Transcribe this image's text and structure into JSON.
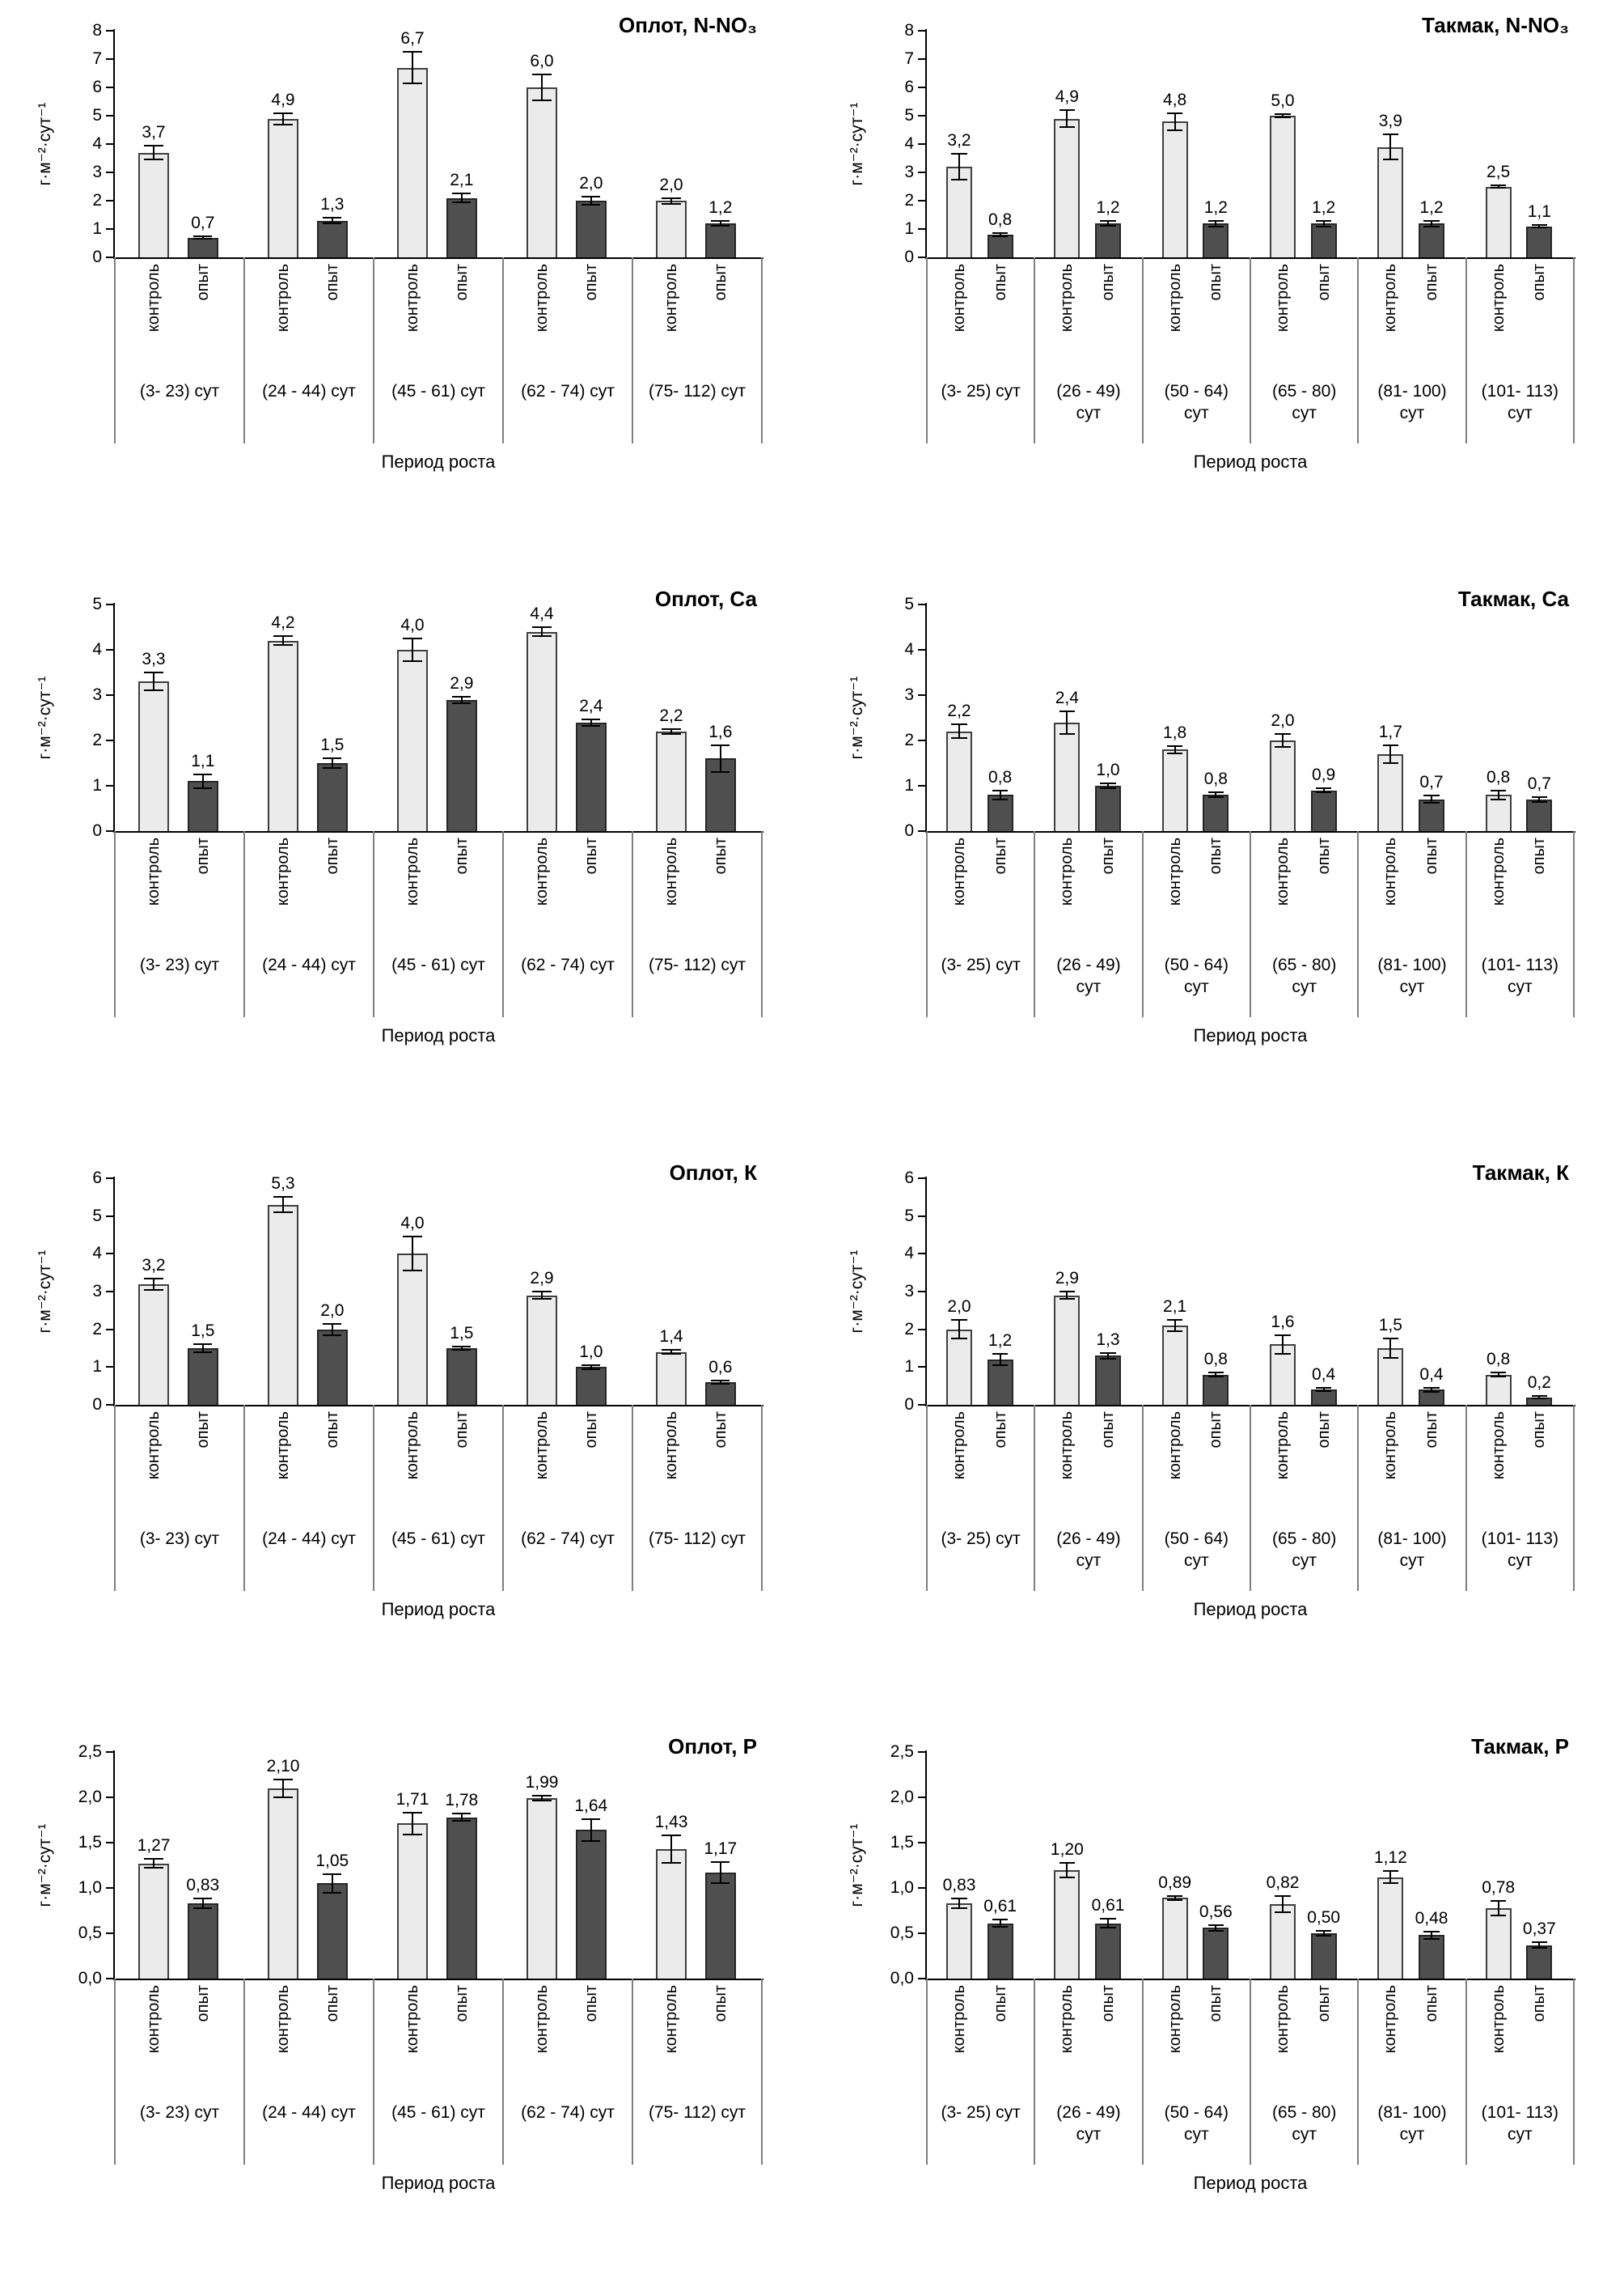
{
  "layout": {
    "xlabel": "Период роста",
    "ylabel": "г·м⁻²·сут⁻¹",
    "legend": [
      "контроль",
      "опыт"
    ],
    "colors": {
      "control_fill": "#ebebeb",
      "control_border": "#3f3f3f",
      "experiment_fill": "#4f4f4f",
      "experiment_border": "#262626",
      "axis": "#000000",
      "separator": "#7f7f7f",
      "error_bar": "#000000"
    }
  },
  "chart_data": [
    {
      "type": "bar",
      "title": "Оплот, N-NO₃",
      "ylim": [
        0,
        8
      ],
      "ystep": 1,
      "ytick_decimals": 0,
      "value_decimals": 1,
      "xlabel": "Период роста",
      "ylabel": "г·м⁻²·сут⁻¹",
      "categories": [
        "(3- 23) сут",
        "(24 - 44) сут",
        "(45 - 61) сут",
        "(62 - 74) сут",
        "(75- 112) сут"
      ],
      "series": [
        {
          "name": "контроль",
          "values": [
            3.7,
            4.9,
            6.7,
            6.0,
            2.0
          ],
          "errors": [
            0.25,
            0.2,
            0.55,
            0.45,
            0.1
          ]
        },
        {
          "name": "опыт",
          "values": [
            0.7,
            1.3,
            2.1,
            2.0,
            1.2
          ],
          "errors": [
            0.05,
            0.1,
            0.15,
            0.15,
            0.08
          ]
        }
      ]
    },
    {
      "type": "bar",
      "title": "Такмак, N-NO₃",
      "ylim": [
        0,
        8
      ],
      "ystep": 1,
      "ytick_decimals": 0,
      "value_decimals": 1,
      "xlabel": "Период роста",
      "ylabel": "г·м⁻²·сут⁻¹",
      "categories": [
        "(3- 25) сут",
        "(26 - 49)\nсут",
        "(50 - 64)\nсут",
        "(65 - 80)\nсут",
        "(81- 100)\nсут",
        "(101- 113)\nсут"
      ],
      "series": [
        {
          "name": "контроль",
          "values": [
            3.2,
            4.9,
            4.8,
            5.0,
            3.9,
            2.5
          ],
          "errors": [
            0.45,
            0.3,
            0.3,
            0.05,
            0.45,
            0.05
          ]
        },
        {
          "name": "опыт",
          "values": [
            0.8,
            1.2,
            1.2,
            1.2,
            1.2,
            1.1
          ],
          "errors": [
            0.05,
            0.08,
            0.1,
            0.1,
            0.1,
            0.05
          ]
        }
      ]
    },
    {
      "type": "bar",
      "title": "Оплот, Са",
      "ylim": [
        0,
        5
      ],
      "ystep": 1,
      "ytick_decimals": 0,
      "value_decimals": 1,
      "xlabel": "Период роста",
      "ylabel": "г·м⁻²·сут⁻¹",
      "categories": [
        "(3- 23) сут",
        "(24 - 44) сут",
        "(45 - 61) сут",
        "(62 - 74) сут",
        "(75- 112) сут"
      ],
      "series": [
        {
          "name": "контроль",
          "values": [
            3.3,
            4.2,
            4.0,
            4.4,
            2.2
          ],
          "errors": [
            0.2,
            0.1,
            0.25,
            0.1,
            0.05
          ]
        },
        {
          "name": "опыт",
          "values": [
            1.1,
            1.5,
            2.9,
            2.4,
            1.6
          ],
          "errors": [
            0.15,
            0.1,
            0.07,
            0.07,
            0.3
          ]
        }
      ]
    },
    {
      "type": "bar",
      "title": "Такмак, Са",
      "ylim": [
        0,
        5
      ],
      "ystep": 1,
      "ytick_decimals": 0,
      "value_decimals": 1,
      "xlabel": "Период роста",
      "ylabel": "г·м⁻²·сут⁻¹",
      "categories": [
        "(3- 25) сут",
        "(26 - 49)\nсут",
        "(50 - 64)\nсут",
        "(65 - 80)\nсут",
        "(81- 100)\nсут",
        "(101- 113)\nсут"
      ],
      "series": [
        {
          "name": "контроль",
          "values": [
            2.2,
            2.4,
            1.8,
            2.0,
            1.7,
            0.8
          ],
          "errors": [
            0.15,
            0.25,
            0.08,
            0.15,
            0.2,
            0.1
          ]
        },
        {
          "name": "опыт",
          "values": [
            0.8,
            1.0,
            0.8,
            0.9,
            0.7,
            0.7
          ],
          "errors": [
            0.1,
            0.05,
            0.05,
            0.05,
            0.08,
            0.05
          ]
        }
      ]
    },
    {
      "type": "bar",
      "title": "Оплот, К",
      "ylim": [
        0,
        6
      ],
      "ystep": 1,
      "ytick_decimals": 0,
      "value_decimals": 1,
      "xlabel": "Период роста",
      "ylabel": "г·м⁻²·сут⁻¹",
      "categories": [
        "(3- 23) сут",
        "(24 - 44) сут",
        "(45 - 61) сут",
        "(62 - 74) сут",
        "(75- 112) сут"
      ],
      "series": [
        {
          "name": "контроль",
          "values": [
            3.2,
            5.3,
            4.0,
            2.9,
            1.4
          ],
          "errors": [
            0.15,
            0.2,
            0.45,
            0.1,
            0.05
          ]
        },
        {
          "name": "опыт",
          "values": [
            1.5,
            2.0,
            1.5,
            1.0,
            0.6
          ],
          "errors": [
            0.1,
            0.15,
            0.05,
            0.05,
            0.05
          ]
        }
      ]
    },
    {
      "type": "bar",
      "title": "Такмак, К",
      "ylim": [
        0,
        6
      ],
      "ystep": 1,
      "ytick_decimals": 0,
      "value_decimals": 1,
      "xlabel": "Период роста",
      "ylabel": "г·м⁻²·сут⁻¹",
      "categories": [
        "(3- 25) сут",
        "(26 - 49)\nсут",
        "(50 - 64)\nсут",
        "(65 - 80)\nсут",
        "(81- 100)\nсут",
        "(101- 113)\nсут"
      ],
      "series": [
        {
          "name": "контроль",
          "values": [
            2.0,
            2.9,
            2.1,
            1.6,
            1.5,
            0.8
          ],
          "errors": [
            0.25,
            0.1,
            0.15,
            0.25,
            0.25,
            0.05
          ]
        },
        {
          "name": "опыт",
          "values": [
            1.2,
            1.3,
            0.8,
            0.4,
            0.4,
            0.2
          ],
          "errors": [
            0.15,
            0.08,
            0.05,
            0.04,
            0.05,
            0.03
          ]
        }
      ]
    },
    {
      "type": "bar",
      "title": "Оплот, Р",
      "ylim": [
        0,
        2.5
      ],
      "ystep": 0.5,
      "ytick_decimals": 1,
      "value_decimals": 2,
      "xlabel": "Период роста",
      "ylabel": "г·м⁻²·сут⁻¹",
      "categories": [
        "(3- 23) сут",
        "(24 - 44) сут",
        "(45 - 61) сут",
        "(62 - 74) сут",
        "(75- 112) сут"
      ],
      "series": [
        {
          "name": "контроль",
          "values": [
            1.27,
            2.1,
            1.71,
            1.99,
            1.43
          ],
          "errors": [
            0.05,
            0.1,
            0.12,
            0.03,
            0.15
          ]
        },
        {
          "name": "опыт",
          "values": [
            0.83,
            1.05,
            1.78,
            1.64,
            1.17
          ],
          "errors": [
            0.05,
            0.1,
            0.04,
            0.12,
            0.12
          ]
        }
      ]
    },
    {
      "type": "bar",
      "title": "Такмак,  Р",
      "ylim": [
        0,
        2.5
      ],
      "ystep": 0.5,
      "ytick_decimals": 1,
      "value_decimals": 2,
      "xlabel": "Период роста",
      "ylabel": "г·м⁻²·сут⁻¹",
      "categories": [
        "(3- 25) сут",
        "(26 - 49)\nсут",
        "(50 - 64)\nсут",
        "(65 - 80)\nсут",
        "(81- 100)\nсут",
        "(101- 113)\nсут"
      ],
      "series": [
        {
          "name": "контроль",
          "values": [
            0.83,
            1.2,
            0.89,
            0.82,
            1.12,
            0.78
          ],
          "errors": [
            0.05,
            0.08,
            0.02,
            0.09,
            0.07,
            0.08
          ]
        },
        {
          "name": "опыт",
          "values": [
            0.61,
            0.61,
            0.56,
            0.5,
            0.48,
            0.37
          ],
          "errors": [
            0.04,
            0.05,
            0.03,
            0.03,
            0.04,
            0.03
          ]
        }
      ]
    }
  ]
}
